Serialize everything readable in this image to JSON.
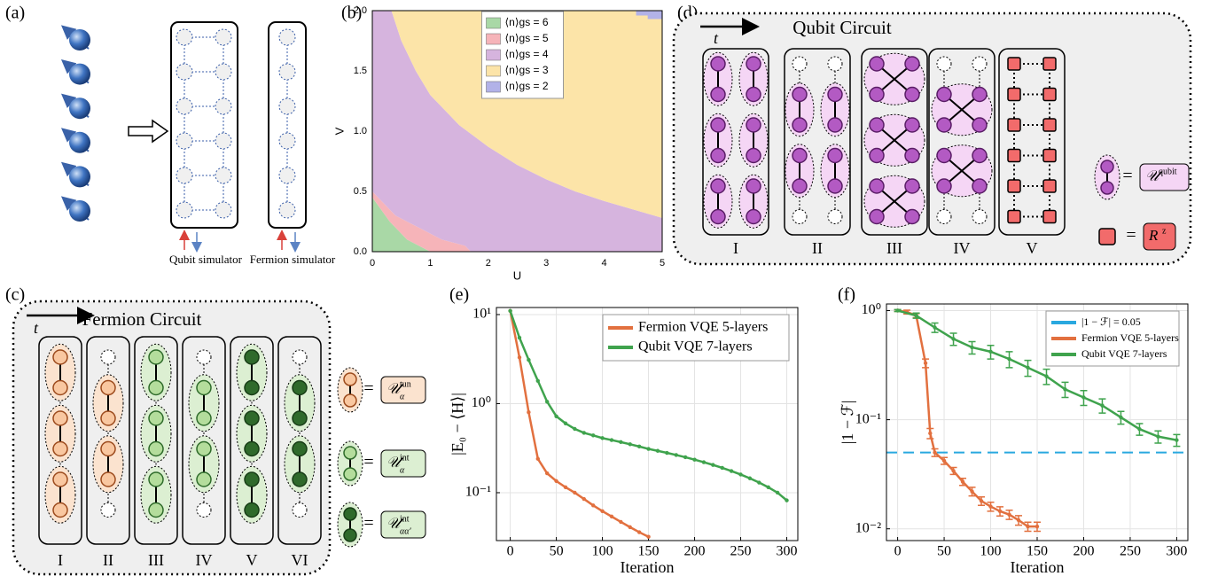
{
  "panel_labels": {
    "a": "(a)",
    "b": "(b)",
    "c": "(c)",
    "d": "(d)",
    "e": "(e)",
    "f": "(f)"
  },
  "panel_a": {
    "qubit_label": "Qubit simulator",
    "fermion_label": "Fermion simulator"
  },
  "panel_c": {
    "title": "Fermion Circuit",
    "time": "t",
    "layers": [
      "I",
      "II",
      "III",
      "IV",
      "V",
      "VI"
    ],
    "equals": "=",
    "gates": [
      {
        "symbol": "𝒰",
        "sup": "tun",
        "sub": "α"
      },
      {
        "symbol": "𝒰",
        "sup": "int",
        "sub": "α"
      },
      {
        "symbol": "𝒰",
        "sup": "int",
        "sub": "αα′"
      }
    ]
  },
  "panel_d": {
    "title": "Qubit Circuit",
    "time": "t",
    "layers": [
      "I",
      "II",
      "III",
      "IV",
      "V"
    ],
    "equals": "=",
    "gates": [
      {
        "symbol": "𝒰",
        "sup": "qubit"
      },
      {
        "symbol": "R",
        "sup": "z"
      }
    ]
  },
  "chart_data": [
    {
      "type": "area",
      "xlabel": "U",
      "ylabel": "V",
      "xlim": [
        0,
        5
      ],
      "ylim": [
        0,
        2
      ],
      "xticks": [
        0,
        1,
        2,
        3,
        4,
        5
      ],
      "yticks": [
        {
          "value": 0,
          "label": "0.0"
        },
        {
          "value": 0.5,
          "label": "0.5"
        },
        {
          "value": 1,
          "label": "1.0"
        },
        {
          "value": 1.5,
          "label": "1.5"
        },
        {
          "value": 2,
          "label": "2.0"
        }
      ],
      "grid": false,
      "legend": "top-center",
      "series": [
        {
          "name": "⟨n⟩gs = 6",
          "color": "#a9d8a6",
          "x": [
            0,
            0,
            0.3,
            0.6,
            1
          ],
          "y": [
            0,
            0.45,
            0.25,
            0.1,
            0
          ]
        },
        {
          "name": "⟨n⟩gs = 5",
          "color": "#f6b4b9",
          "x": [
            0,
            0,
            0.4,
            0.8,
            1.2,
            1.6,
            1.7,
            1,
            0.6,
            0.3
          ],
          "y": [
            0.45,
            0.5,
            0.3,
            0.2,
            0.1,
            0.05,
            0,
            0,
            0.1,
            0.25
          ]
        },
        {
          "name": "⟨n⟩gs = 4",
          "color": "#d6b4de",
          "x": [
            0,
            0.4,
            0.8,
            1.2,
            1.6,
            1.7,
            5,
            5,
            4.5,
            4,
            3.5,
            3,
            2.5,
            2,
            1.5,
            1,
            0.75,
            0.5,
            0.33,
            0
          ],
          "y": [
            0.5,
            0.3,
            0.2,
            0.1,
            0.05,
            0,
            0,
            0.28,
            0.35,
            0.42,
            0.5,
            0.6,
            0.72,
            0.87,
            1.05,
            1.3,
            1.5,
            1.75,
            2,
            2
          ]
        },
        {
          "name": "⟨n⟩gs = 3",
          "color": "#fce4a8",
          "x": [
            0.33,
            0.5,
            0.75,
            1,
            1.5,
            2,
            2.5,
            3,
            3.5,
            4,
            4.5,
            5,
            5
          ],
          "y": [
            2,
            1.75,
            1.5,
            1.3,
            1.05,
            0.87,
            0.72,
            0.6,
            0.5,
            0.42,
            0.35,
            0.28,
            2
          ]
        },
        {
          "name": "⟨n⟩gs = 2",
          "color": "#b2b2e8",
          "x": [
            4.55,
            4.55,
            4.75,
            4.75,
            5,
            5
          ],
          "y": [
            2,
            1.96,
            1.96,
            1.93,
            1.93,
            2
          ]
        }
      ]
    },
    {
      "type": "line",
      "xlabel": "Iteration",
      "ylabel": "|E₀ − ⟨H⟩|",
      "xlim": [
        -15,
        312
      ],
      "ylim": [
        0.029,
        12
      ],
      "ylog": true,
      "xticks": [
        0,
        50,
        100,
        150,
        200,
        250,
        300
      ],
      "yticks": [
        {
          "value": 0.1,
          "label": "10⁻¹"
        },
        {
          "value": 1,
          "label": "10⁰"
        },
        {
          "value": 10,
          "label": "10¹"
        }
      ],
      "grid": true,
      "legend": "top-right",
      "series": [
        {
          "name": "Fermion VQE 5-layers",
          "color": "#e2703f",
          "x": [
            0,
            10,
            20,
            30,
            40,
            50,
            60,
            70,
            80,
            90,
            100,
            110,
            120,
            130,
            140,
            150
          ],
          "values": [
            11,
            3.3,
            0.8,
            0.24,
            0.165,
            0.135,
            0.115,
            0.1,
            0.085,
            0.072,
            0.062,
            0.054,
            0.047,
            0.041,
            0.036,
            0.032
          ]
        },
        {
          "name": "Qubit VQE 7-layers",
          "color": "#3fa34d",
          "x": [
            0,
            10,
            20,
            30,
            40,
            50,
            60,
            70,
            80,
            90,
            100,
            110,
            120,
            130,
            140,
            150,
            160,
            170,
            180,
            190,
            200,
            210,
            220,
            230,
            240,
            250,
            260,
            270,
            280,
            290,
            300
          ],
          "values": [
            11,
            5.5,
            3.1,
            1.8,
            1.05,
            0.72,
            0.6,
            0.52,
            0.47,
            0.44,
            0.41,
            0.39,
            0.37,
            0.35,
            0.33,
            0.31,
            0.295,
            0.28,
            0.265,
            0.25,
            0.235,
            0.22,
            0.205,
            0.19,
            0.175,
            0.16,
            0.145,
            0.13,
            0.115,
            0.1,
            0.082
          ]
        }
      ]
    },
    {
      "type": "line",
      "xlabel": "Iteration",
      "ylabel": "|1 − ℱ|",
      "xlim": [
        -12,
        312
      ],
      "ylim": [
        0.0078,
        1.15
      ],
      "ylog": true,
      "xticks": [
        0,
        50,
        100,
        150,
        200,
        250,
        300
      ],
      "yticks": [
        {
          "value": 0.01,
          "label": "10⁻²"
        },
        {
          "value": 0.1,
          "label": "10⁻¹"
        },
        {
          "value": 1,
          "label": "10⁰"
        }
      ],
      "grid": true,
      "legend": "top-right",
      "reference_line": {
        "name": "|1 − ℱ| = 0.05",
        "value": 0.05,
        "color": "#29a8df"
      },
      "series": [
        {
          "name": "Fermion VQE 5-layers",
          "color": "#e2703f",
          "x": [
            0,
            10,
            20,
            30,
            35,
            40,
            50,
            60,
            70,
            80,
            90,
            100,
            110,
            120,
            130,
            140,
            150
          ],
          "values": [
            1.0,
            0.97,
            0.9,
            0.33,
            0.075,
            0.05,
            0.042,
            0.034,
            0.027,
            0.022,
            0.018,
            0.016,
            0.0145,
            0.0135,
            0.012,
            0.0105,
            0.0105
          ],
          "errors": [
            0.02,
            0.04,
            0.04,
            0.03,
            0.008,
            0.004,
            0.003,
            0.0025,
            0.002,
            0.002,
            0.0016,
            0.0015,
            0.0014,
            0.0013,
            0.0012,
            0.001,
            0.001
          ]
        },
        {
          "name": "Qubit VQE 7-layers",
          "color": "#3fa34d",
          "x": [
            0,
            20,
            40,
            60,
            80,
            100,
            120,
            140,
            160,
            180,
            200,
            220,
            240,
            260,
            280,
            300
          ],
          "values": [
            1.0,
            0.9,
            0.7,
            0.55,
            0.46,
            0.42,
            0.36,
            0.3,
            0.25,
            0.19,
            0.16,
            0.135,
            0.105,
            0.082,
            0.07,
            0.065
          ],
          "errors": [
            0.02,
            0.05,
            0.07,
            0.07,
            0.06,
            0.06,
            0.06,
            0.05,
            0.04,
            0.03,
            0.025,
            0.02,
            0.014,
            0.01,
            0.009,
            0.008
          ]
        }
      ]
    }
  ]
}
